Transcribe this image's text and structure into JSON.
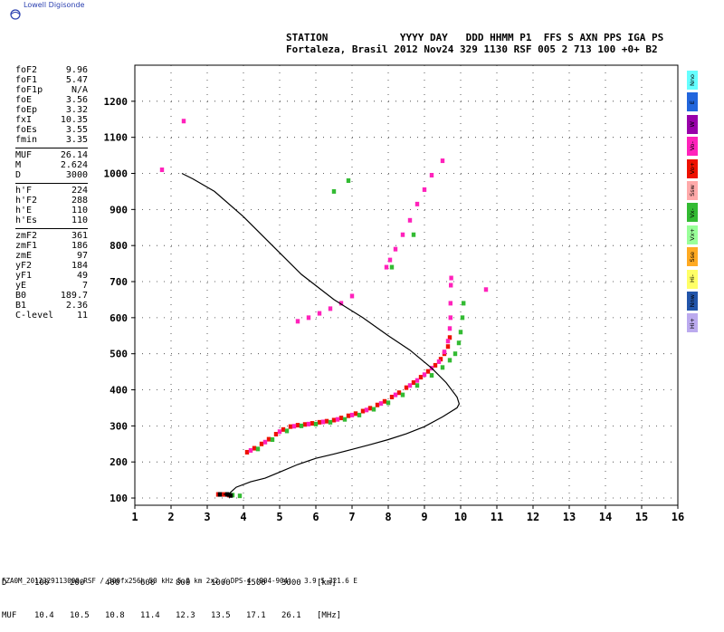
{
  "logo": {
    "text": "Lowell Digisonde"
  },
  "header": {
    "line1": "STATION            YYYY DAY   DDD HHMM P1  FFS S AXN PPS IGA PS",
    "line2": "Fortaleza, Brasil 2012 Nov24 329 1130 RSF 005 2 713 100 +0+ B2"
  },
  "params": {
    "groups": [
      [
        {
          "label": "foF2",
          "value": "9.96"
        },
        {
          "label": "foF1",
          "value": "5.47"
        },
        {
          "label": "foF1p",
          "value": "N/A"
        },
        {
          "label": "foE",
          "value": "3.56"
        },
        {
          "label": "foEp",
          "value": "3.32"
        },
        {
          "label": "fxI",
          "value": "10.35"
        },
        {
          "label": "foEs",
          "value": "3.55"
        },
        {
          "label": "fmin",
          "value": "3.35"
        }
      ],
      [
        {
          "label": "MUF",
          "value": "26.14"
        },
        {
          "label": "M",
          "value": "2.624"
        },
        {
          "label": "D",
          "value": "3000"
        }
      ],
      [
        {
          "label": "h'F",
          "value": "224"
        },
        {
          "label": "h'F2",
          "value": "288"
        },
        {
          "label": "h'E",
          "value": "110"
        },
        {
          "label": "h'Es",
          "value": "110"
        }
      ],
      [
        {
          "label": "zmF2",
          "value": "361"
        },
        {
          "label": "zmF1",
          "value": "186"
        },
        {
          "label": "zmE",
          "value": "97"
        },
        {
          "label": "yF2",
          "value": "184"
        },
        {
          "label": "yF1",
          "value": "49"
        },
        {
          "label": "yE",
          "value": "7"
        },
        {
          "label": "B0",
          "value": "189.7"
        },
        {
          "label": "B1",
          "value": "2.36"
        },
        {
          "label": "C-level",
          "value": "11"
        }
      ]
    ]
  },
  "legend": [
    {
      "label": "Nno",
      "color": "#66ffff"
    },
    {
      "label": "E",
      "color": "#2266dd"
    },
    {
      "label": "W",
      "color": "#9900aa"
    },
    {
      "label": "Vo-",
      "color": "#ff22bb"
    },
    {
      "label": "Vo+",
      "color": "#ee1100"
    },
    {
      "label": "Ssw",
      "color": "#ffaaaa"
    },
    {
      "label": "Vx-",
      "color": "#33bb33"
    },
    {
      "label": "Vx+",
      "color": "#99ff99"
    },
    {
      "label": "Sse",
      "color": "#ffaa22"
    },
    {
      "label": "Hi-",
      "color": "#ffff66"
    },
    {
      "label": "Nnw",
      "color": "#2255aa"
    },
    {
      "label": "Hi+",
      "color": "#bbaaee"
    }
  ],
  "muf_table": {
    "d_label": "D",
    "d_values": [
      "100",
      "200",
      "400",
      "600",
      "800",
      "1000",
      "1500",
      "3000"
    ],
    "d_unit": "[km]",
    "muf_label": "MUF",
    "muf_values": [
      "10.4",
      "10.5",
      "10.8",
      "11.4",
      "12.3",
      "13.5",
      "17.1",
      "26.1"
    ],
    "muf_unit": "[MHz]"
  },
  "footer": "FZA0M_2012329113000.RSF / 300fx256h 50 kHz 5.0 km 2x2 / DPS-4 (904-904)   3.9 S 321.6 E",
  "chart_data": {
    "type": "scatter",
    "xlim": [
      1,
      16
    ],
    "ylim": [
      80,
      1300
    ],
    "x_ticks": [
      1,
      2,
      3,
      4,
      5,
      6,
      7,
      8,
      9,
      10,
      11,
      12,
      13,
      14,
      15,
      16
    ],
    "y_ticks": [
      100,
      200,
      300,
      400,
      500,
      600,
      700,
      800,
      900,
      1000,
      1100,
      1200
    ],
    "grid": "dotted",
    "series": [
      {
        "name": "Vo+",
        "color": "#ee1100",
        "points": [
          [
            4.1,
            227
          ],
          [
            4.3,
            238
          ],
          [
            4.5,
            250
          ],
          [
            4.7,
            263
          ],
          [
            4.9,
            277
          ],
          [
            5.1,
            290
          ],
          [
            5.3,
            298
          ],
          [
            5.5,
            302
          ],
          [
            5.7,
            304
          ],
          [
            5.9,
            307
          ],
          [
            6.1,
            310
          ],
          [
            6.3,
            313
          ],
          [
            6.5,
            316
          ],
          [
            6.7,
            322
          ],
          [
            6.9,
            328
          ],
          [
            7.1,
            334
          ],
          [
            7.3,
            341
          ],
          [
            7.5,
            349
          ],
          [
            7.7,
            358
          ],
          [
            7.9,
            368
          ],
          [
            8.1,
            380
          ],
          [
            8.3,
            392
          ],
          [
            8.5,
            406
          ],
          [
            8.7,
            420
          ],
          [
            8.9,
            435
          ],
          [
            9.1,
            451
          ],
          [
            9.3,
            468
          ],
          [
            9.45,
            485
          ],
          [
            9.55,
            500
          ],
          [
            9.65,
            520
          ],
          [
            9.7,
            545
          ],
          [
            3.3,
            110
          ],
          [
            3.45,
            110
          ],
          [
            3.6,
            108
          ]
        ]
      },
      {
        "name": "Vo-",
        "color": "#ff22bb",
        "points": [
          [
            4.2,
            232
          ],
          [
            4.6,
            255
          ],
          [
            5.0,
            284
          ],
          [
            5.4,
            299
          ],
          [
            5.8,
            305
          ],
          [
            6.2,
            311
          ],
          [
            6.6,
            318
          ],
          [
            7.0,
            330
          ],
          [
            7.4,
            344
          ],
          [
            7.8,
            362
          ],
          [
            8.2,
            386
          ],
          [
            8.6,
            412
          ],
          [
            8.8,
            426
          ],
          [
            9.0,
            442
          ],
          [
            9.2,
            460
          ],
          [
            9.4,
            478
          ],
          [
            9.55,
            505
          ],
          [
            9.65,
            535
          ],
          [
            9.7,
            570
          ],
          [
            9.72,
            600
          ],
          [
            9.72,
            640
          ],
          [
            9.73,
            690
          ],
          [
            9.74,
            710
          ],
          [
            5.5,
            590
          ],
          [
            5.8,
            600
          ],
          [
            6.1,
            612
          ],
          [
            6.4,
            625
          ],
          [
            6.7,
            640
          ],
          [
            7.0,
            660
          ],
          [
            7.95,
            740
          ],
          [
            8.05,
            760
          ],
          [
            8.2,
            790
          ],
          [
            8.4,
            830
          ],
          [
            8.6,
            870
          ],
          [
            8.8,
            915
          ],
          [
            9.0,
            955
          ],
          [
            9.2,
            995
          ],
          [
            9.5,
            1035
          ],
          [
            1.75,
            1010
          ],
          [
            2.35,
            1145
          ],
          [
            10.7,
            678
          ]
        ]
      },
      {
        "name": "Vx-",
        "color": "#33bb33",
        "points": [
          [
            4.4,
            236
          ],
          [
            4.8,
            262
          ],
          [
            5.2,
            286
          ],
          [
            5.6,
            300
          ],
          [
            6.0,
            305
          ],
          [
            6.4,
            310
          ],
          [
            6.8,
            318
          ],
          [
            7.2,
            330
          ],
          [
            7.6,
            346
          ],
          [
            8.0,
            364
          ],
          [
            8.4,
            386
          ],
          [
            8.8,
            412
          ],
          [
            9.2,
            440
          ],
          [
            9.5,
            462
          ],
          [
            9.7,
            482
          ],
          [
            9.85,
            500
          ],
          [
            9.95,
            530
          ],
          [
            10.0,
            560
          ],
          [
            10.05,
            600
          ],
          [
            10.08,
            640
          ],
          [
            6.5,
            950
          ],
          [
            6.9,
            980
          ],
          [
            8.1,
            740
          ],
          [
            8.7,
            830
          ],
          [
            3.7,
            108
          ],
          [
            3.9,
            106
          ]
        ]
      },
      {
        "name": "O-trace",
        "color": "#000000",
        "points": [
          [
            3.35,
            110
          ],
          [
            3.55,
            110
          ],
          [
            3.65,
            107
          ]
        ]
      }
    ],
    "profile": {
      "name": "profile",
      "color": "#000000",
      "points": [
        [
          3.45,
          110
        ],
        [
          3.6,
          112
        ],
        [
          3.8,
          130
        ],
        [
          4.2,
          145
        ],
        [
          4.6,
          155
        ],
        [
          5.0,
          172
        ],
        [
          5.5,
          193
        ],
        [
          6.0,
          210
        ],
        [
          6.5,
          222
        ],
        [
          7.0,
          235
        ],
        [
          7.5,
          248
        ],
        [
          8.0,
          262
        ],
        [
          8.5,
          278
        ],
        [
          9.0,
          298
        ],
        [
          9.5,
          325
        ],
        [
          9.9,
          350
        ],
        [
          9.96,
          361
        ],
        [
          9.9,
          380
        ],
        [
          9.6,
          420
        ],
        [
          9.2,
          460
        ],
        [
          8.6,
          510
        ],
        [
          8.0,
          550
        ],
        [
          7.3,
          600
        ],
        [
          6.5,
          650
        ],
        [
          5.6,
          720
        ],
        [
          4.8,
          800
        ],
        [
          4.0,
          880
        ],
        [
          3.2,
          950
        ],
        [
          2.6,
          985
        ],
        [
          2.3,
          1000
        ]
      ]
    }
  }
}
